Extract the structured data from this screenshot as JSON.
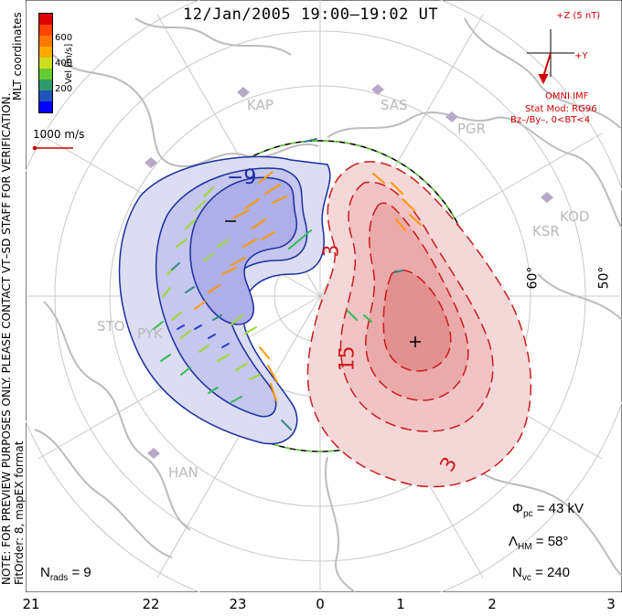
{
  "title": "12/Jan/2005 19:00–19:02 UT",
  "side_note": [
    "NOTE: FOR PREVIEW PURPOSES ONLY. PLEASE CONTACT VT–SD STAFF FOR VERIFICATION.",
    "FitOrder: 8, mapEX format"
  ],
  "mlt_coord_label": "MLT coordinates",
  "colorbar": {
    "label": "Vel [m/s]",
    "ticks": [
      "600",
      "400",
      "200"
    ],
    "colors": [
      "#e00000",
      "#ff6600",
      "#ff9900",
      "#ffcc00",
      "#99dd33",
      "#33bb55",
      "#2e8b8b",
      "#2244cc",
      "#0000ff"
    ]
  },
  "reference_vector": "1000 m/s",
  "imf": {
    "axis_z": "+Z (5 nT)",
    "axis_y": "+Y",
    "source": "OMNI IMF",
    "model": "Stat Mod: RG96",
    "condition": "Bz–/By–, 0<BT<4"
  },
  "stats": {
    "phi_pc_symbol": "Φ",
    "phi_pc_sub": "pc",
    "phi_pc_value": "= 43 kV",
    "lambda_hm_symbol": "Λ",
    "lambda_hm_sub": "HM",
    "lambda_hm_value": "= 58°",
    "n_vc_symbol": "N",
    "n_vc_sub": "vc",
    "n_vc_value": "= 240",
    "n_rads_symbol": "N",
    "n_rads_sub": "rads",
    "n_rads_value": "= 9"
  },
  "mlt_ticks": [
    "21",
    "22",
    "23",
    "0",
    "1",
    "2",
    "3"
  ],
  "lat_labels": [
    "60°",
    "50°"
  ],
  "contour_labels": {
    "negative": "−9",
    "positive_inner": "15",
    "positive_outer": "3",
    "positive_mid": "3"
  },
  "extrema": {
    "min": "−",
    "max": "+"
  },
  "stations": [
    "KAP",
    "SAS",
    "PGR",
    "KOD",
    "KSR",
    "STO",
    "PYK",
    "HAN"
  ],
  "colors": {
    "negative_cell": "#1a2fa0",
    "positive_cell": "#cc1a1a",
    "hm_boundary": "#66cc33",
    "imf": "#d00000",
    "grid": "#c8c8c8",
    "coast": "#bcbcbc"
  }
}
